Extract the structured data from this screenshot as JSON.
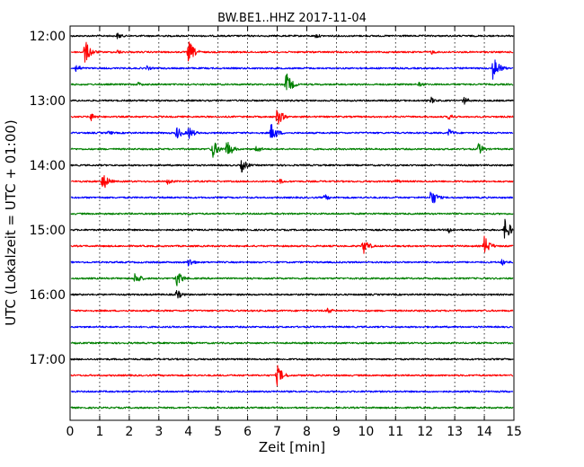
{
  "chart_data": {
    "type": "line",
    "title": "BW.BE1..HHZ 2017-11-04",
    "xlabel": "Zeit  [min]",
    "ylabel": "UTC (Lokalzeit = UTC + 01:00)",
    "xlim": [
      0,
      15
    ],
    "x_ticks": [
      "0",
      "1",
      "2",
      "3",
      "4",
      "5",
      "6",
      "7",
      "8",
      "9",
      "10",
      "11",
      "12",
      "13",
      "14",
      "15"
    ],
    "y_ticks": [
      "12:00",
      "13:00",
      "14:00",
      "15:00",
      "16:00",
      "17:00"
    ],
    "grid": "vertical dotted",
    "trace_interval_minutes": 15,
    "line_colors": [
      "#000000",
      "#ff0000",
      "#0000ff",
      "#008000"
    ],
    "traces": [
      {
        "start": "12:00",
        "color": "#000000",
        "events": [
          {
            "t": 1.6,
            "a": 4
          },
          {
            "t": 8.3,
            "a": 3
          }
        ]
      },
      {
        "start": "12:15",
        "color": "#ff0000",
        "events": [
          {
            "t": 0.5,
            "a": 14
          },
          {
            "t": 4.0,
            "a": 14
          },
          {
            "t": 1.6,
            "a": 3
          },
          {
            "t": 12.2,
            "a": 3
          }
        ]
      },
      {
        "start": "12:30",
        "color": "#0000ff",
        "events": [
          {
            "t": 0.2,
            "a": 5
          },
          {
            "t": 2.6,
            "a": 3
          },
          {
            "t": 14.3,
            "a": 16
          }
        ]
      },
      {
        "start": "12:45",
        "color": "#008000",
        "events": [
          {
            "t": 2.3,
            "a": 3
          },
          {
            "t": 7.3,
            "a": 14
          },
          {
            "t": 11.8,
            "a": 3
          }
        ]
      },
      {
        "start": "13:00",
        "color": "#000000",
        "events": [
          {
            "t": 12.2,
            "a": 4
          },
          {
            "t": 13.3,
            "a": 5
          }
        ]
      },
      {
        "start": "13:15",
        "color": "#ff0000",
        "events": [
          {
            "t": 0.7,
            "a": 5
          },
          {
            "t": 7.0,
            "a": 11
          },
          {
            "t": 12.8,
            "a": 4
          }
        ]
      },
      {
        "start": "13:30",
        "color": "#0000ff",
        "events": [
          {
            "t": 1.3,
            "a": 3
          },
          {
            "t": 3.6,
            "a": 8
          },
          {
            "t": 4.0,
            "a": 8
          },
          {
            "t": 6.8,
            "a": 12
          },
          {
            "t": 12.8,
            "a": 5
          }
        ]
      },
      {
        "start": "13:45",
        "color": "#008000",
        "events": [
          {
            "t": 4.8,
            "a": 12
          },
          {
            "t": 5.3,
            "a": 11
          },
          {
            "t": 6.3,
            "a": 5
          },
          {
            "t": 13.8,
            "a": 7
          }
        ]
      },
      {
        "start": "14:00",
        "color": "#000000",
        "events": [
          {
            "t": 5.8,
            "a": 8
          }
        ]
      },
      {
        "start": "14:15",
        "color": "#ff0000",
        "events": [
          {
            "t": 1.1,
            "a": 11
          },
          {
            "t": 3.3,
            "a": 4
          },
          {
            "t": 7.1,
            "a": 3
          },
          {
            "t": 11.0,
            "a": 3
          }
        ]
      },
      {
        "start": "14:30",
        "color": "#0000ff",
        "events": [
          {
            "t": 8.6,
            "a": 4
          },
          {
            "t": 12.2,
            "a": 11
          }
        ]
      },
      {
        "start": "14:45",
        "color": "#008000",
        "events": [
          {
            "t": 4.0,
            "a": 2
          }
        ]
      },
      {
        "start": "15:00",
        "color": "#000000",
        "events": [
          {
            "t": 12.8,
            "a": 4
          },
          {
            "t": 14.7,
            "a": 14
          }
        ]
      },
      {
        "start": "15:15",
        "color": "#ff0000",
        "events": [
          {
            "t": 9.9,
            "a": 10
          },
          {
            "t": 14.0,
            "a": 12
          }
        ]
      },
      {
        "start": "15:30",
        "color": "#0000ff",
        "events": [
          {
            "t": 4.0,
            "a": 6
          },
          {
            "t": 14.6,
            "a": 4
          }
        ]
      },
      {
        "start": "15:45",
        "color": "#008000",
        "events": [
          {
            "t": 2.2,
            "a": 8
          },
          {
            "t": 3.6,
            "a": 10
          }
        ]
      },
      {
        "start": "16:00",
        "color": "#000000",
        "events": [
          {
            "t": 3.6,
            "a": 6
          }
        ]
      },
      {
        "start": "16:15",
        "color": "#ff0000",
        "events": [
          {
            "t": 8.7,
            "a": 4
          }
        ]
      },
      {
        "start": "16:30",
        "color": "#0000ff",
        "events": []
      },
      {
        "start": "16:45",
        "color": "#008000",
        "events": []
      },
      {
        "start": "17:00",
        "color": "#000000",
        "events": []
      },
      {
        "start": "17:15",
        "color": "#ff0000",
        "events": [
          {
            "t": 7.0,
            "a": 12
          }
        ]
      },
      {
        "start": "17:30",
        "color": "#0000ff",
        "events": []
      },
      {
        "start": "17:45",
        "color": "#008000",
        "events": []
      }
    ]
  }
}
